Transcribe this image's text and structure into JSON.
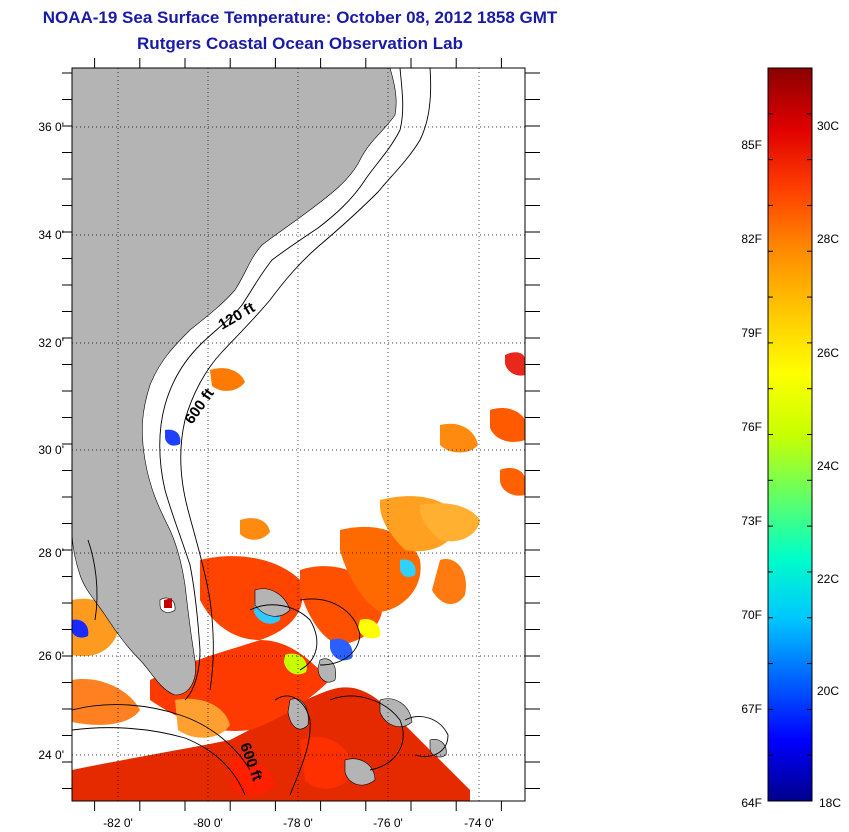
{
  "header": {
    "title": "NOAA-19 Sea Surface Temperature:  October 08, 2012 1858 GMT",
    "subtitle": "Rutgers Coastal Ocean Observation Lab"
  },
  "map": {
    "lon_ticks": [
      "-82 0'",
      "-80 0'",
      "-78 0'",
      "-76 0'",
      "-74 0'"
    ],
    "lat_ticks": [
      "36 0'",
      "34 0'",
      "32 0'",
      "30 0'",
      "28 0'",
      "26 0'",
      "24 0'"
    ],
    "lon_range": [
      -83,
      -73
    ],
    "lat_range": [
      23,
      37
    ],
    "contours": {
      "shelf_120": "120 ft",
      "shelf_600_north": "600 ft",
      "shelf_600_south": "600 ft"
    },
    "colors": {
      "land": "#b4b4b4",
      "grid": "#000000",
      "contour": "#000000"
    }
  },
  "colorbar": {
    "fahrenheit_labels": [
      "85F",
      "82F",
      "79F",
      "76F",
      "73F",
      "70F",
      "67F",
      "64F"
    ],
    "celsius_labels": [
      "30C",
      "28C",
      "26C",
      "24C",
      "22C",
      "20C",
      "18C"
    ],
    "colors": [
      "#00008b",
      "#0000ff",
      "#0064ff",
      "#00c8ff",
      "#00ffc8",
      "#64ff64",
      "#c8ff00",
      "#ffff00",
      "#ffc800",
      "#ff8c00",
      "#ff4000",
      "#e00000",
      "#8b0000"
    ]
  }
}
